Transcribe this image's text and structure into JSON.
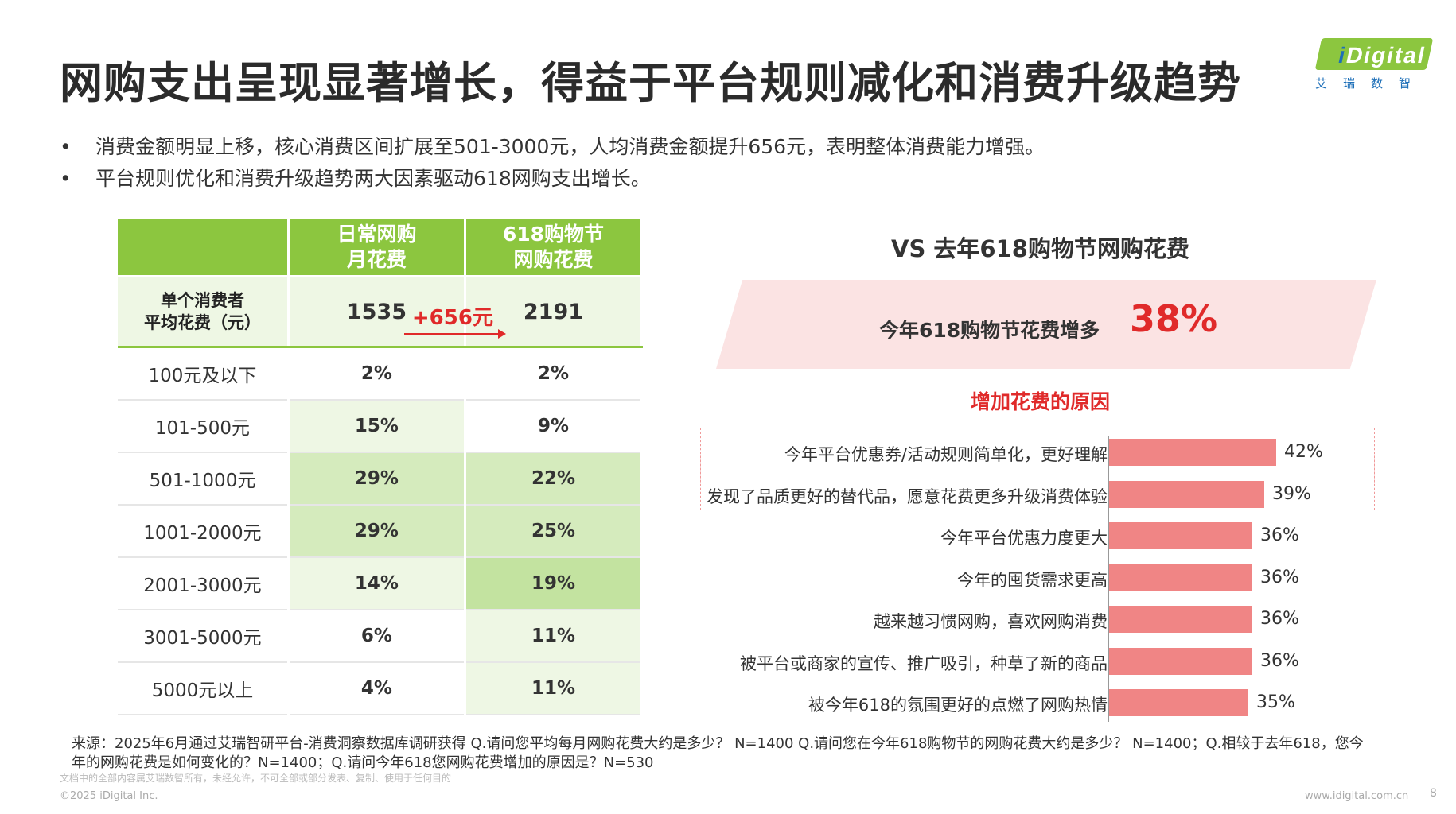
{
  "title": "网购支出呈现显著增长，得益于平台规则减化和消费升级趋势",
  "logo": {
    "brand_i": "i",
    "brand_rest": "Digital",
    "cn": "艾瑞数智"
  },
  "bullets": [
    "消费金额明显上移，核心消费区间扩展至501-3000元，人均消费金额提升656元，表明整体消费能力增强。",
    "平台规则优化和消费升级趋势两大因素驱动618网购支出增长。"
  ],
  "bullet_mark": "•",
  "table": {
    "col1_header": "日常网购\n月花费",
    "col2_header": "618购物节\n网购花费",
    "avg_label": "单个消费者\n平均花费（元）",
    "avg_daily": "1535",
    "avg_618": "2191",
    "avg_increase": "+656元",
    "rows": [
      {
        "label": "100元及以下",
        "daily": "2%",
        "s618": "2%"
      },
      {
        "label": "101-500元",
        "daily": "15%",
        "s618": "9%"
      },
      {
        "label": "501-1000元",
        "daily": "29%",
        "s618": "22%"
      },
      {
        "label": "1001-2000元",
        "daily": "29%",
        "s618": "25%"
      },
      {
        "label": "2001-3000元",
        "daily": "14%",
        "s618": "19%"
      },
      {
        "label": "3001-5000元",
        "daily": "6%",
        "s618": "11%"
      },
      {
        "label": "5000元以上",
        "daily": "4%",
        "s618": "11%"
      }
    ]
  },
  "vs_title": "VS 去年618购物节网购花费",
  "banner": {
    "text": "今年618购物节花费增多",
    "percent": "38%"
  },
  "reasons_title": "增加花费的原因",
  "chart_data": {
    "type": "bar",
    "orientation": "horizontal",
    "categories": [
      "今年平台优惠券/活动规则简单化，更好理解",
      "发现了品质更好的替代品，愿意花费更多升级消费体验",
      "今年平台优惠力度更大",
      "今年的囤货需求更高",
      "越来越习惯网购，喜欢网购消费",
      "被平台或商家的宣传、推广吸引，种草了新的商品",
      "被今年618的氛围更好的点燃了网购热情"
    ],
    "values": [
      42,
      39,
      36,
      36,
      36,
      36,
      35
    ],
    "value_labels": [
      "42%",
      "39%",
      "36%",
      "36%",
      "36%",
      "36%",
      "35%"
    ],
    "color": "#f08585",
    "highlighted": [
      0,
      1
    ]
  },
  "source": "来源：2025年6月通过艾瑞智研平台-消费洞察数据库调研获得 Q.请问您平均每月网购花费大约是多少？ N=1400 Q.请问您在今年618购物节的网购花费大约是多少？ N=1400；Q.相较于去年618，您今年的网购花费是如何变化的？N=1400；Q.请问今年618您网购花费增加的原因是？N=530",
  "fine_print": "文档中的全部内容属艾瑞数智所有，未经允许，不可全部或部分发表、复制、使用于任何目的",
  "copyright": "©2025 iDigital Inc.",
  "website": "www.idigital.com.cn",
  "page": "8"
}
